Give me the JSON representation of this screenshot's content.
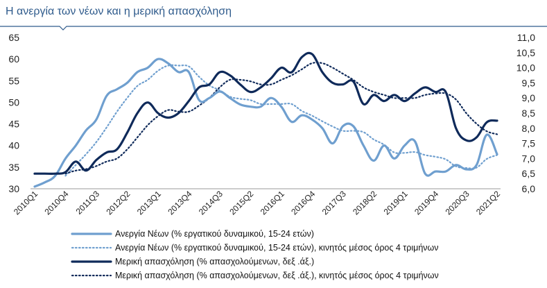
{
  "colors": {
    "accent": "#2f5b8c",
    "light_blue": "#6f9fcf",
    "dark_navy": "#0f2a5a",
    "rule": "#2f5b8c"
  },
  "chart_data": {
    "type": "line",
    "title": "Η ανεργία των νέων και η μερική απασχόληση",
    "x": [
      "2010Q1",
      "2010Q2",
      "2010Q3",
      "2010Q4",
      "2011Q1",
      "2011Q2",
      "2011Q3",
      "2011Q4",
      "2012Q1",
      "2012Q2",
      "2012Q3",
      "2012Q4",
      "2013Q1",
      "2013Q2",
      "2013Q3",
      "2013Q4",
      "2014Q1",
      "2014Q2",
      "2014Q3",
      "2014Q4",
      "2015Q1",
      "2015Q2",
      "2015Q3",
      "2015Q4",
      "2016Q1",
      "2016Q2",
      "2016Q3",
      "2016Q4",
      "2017Q1",
      "2017Q2",
      "2017Q3",
      "2017Q4",
      "2018Q1",
      "2018Q2",
      "2018Q3",
      "2018Q4",
      "2019Q1",
      "2019Q2",
      "2019Q3",
      "2019Q4",
      "2020Q1",
      "2020Q2",
      "2020Q3",
      "2020Q4",
      "2021Q1",
      "2021Q2"
    ],
    "xtick_labels": [
      "2010Q1",
      "2010Q4",
      "2011Q3",
      "2012Q2",
      "2013Q1",
      "2013Q4",
      "2014Q3",
      "2015Q2",
      "2016Q1",
      "2016Q4",
      "2017Q3",
      "2018Q2",
      "2019Q1",
      "2019Q4",
      "2020Q3",
      "2021Q2"
    ],
    "left_axis": {
      "ylim": [
        30,
        65
      ],
      "ticks": [
        "30",
        "35",
        "40",
        "45",
        "50",
        "55",
        "60",
        "65"
      ]
    },
    "right_axis": {
      "ylim": [
        6.0,
        11.0
      ],
      "ticks": [
        "6,0",
        "6,5",
        "7,0",
        "7,5",
        "8,0",
        "8,5",
        "9,0",
        "9,5",
        "10,0",
        "10,5",
        "11,0"
      ]
    },
    "series": [
      {
        "name": "Ανεργία Νέων (% εργατικού δυναμικού, 15-24 ετών)",
        "axis": "left",
        "style": "solid-light",
        "values": [
          30.5,
          31.5,
          33,
          37,
          40,
          43.5,
          46,
          51.5,
          53,
          54.5,
          57,
          58,
          60,
          59,
          57,
          57,
          50.5,
          51,
          52.5,
          51,
          49.5,
          49,
          49,
          51,
          49,
          45.5,
          47,
          46,
          44,
          40.5,
          44.5,
          44.5,
          40,
          36.5,
          40,
          37,
          40,
          41,
          33.5,
          34,
          34,
          35.5,
          34.5,
          35.5,
          42.5,
          38
        ]
      },
      {
        "name": "Ανεργία Νέων (% εργατικού δυναμικού, 15-24 ετών), κινητός μέσος όρος 4 τριμήνων",
        "axis": "left",
        "style": "dotted-light",
        "values": [
          null,
          null,
          null,
          33,
          35.5,
          38,
          40.8,
          44.2,
          47.8,
          51,
          53.8,
          55.2,
          57.3,
          58.5,
          58.5,
          58.3,
          55.9,
          53.9,
          52.8,
          51.3,
          50.8,
          50.5,
          49.6,
          49.6,
          49.6,
          49.6,
          48,
          46.9,
          45.6,
          44.4,
          43.4,
          43.4,
          43.1,
          41.4,
          40.2,
          38.4,
          38.3,
          38.5,
          37.8,
          37.4,
          36.8,
          35.2,
          34.8,
          34.9,
          36.9,
          37.8
        ]
      },
      {
        "name": "Μερική απασχόληση (% απασχολούμενων, δεξ .άξ.)",
        "axis": "right",
        "style": "solid-dark",
        "values": [
          6.5,
          6.5,
          6.5,
          6.55,
          6.9,
          6.6,
          6.95,
          7.2,
          7.3,
          7.85,
          8.5,
          8.85,
          8.5,
          8.35,
          8.5,
          8.9,
          9.35,
          9.45,
          9.85,
          9.75,
          9.45,
          9.2,
          9.35,
          9.65,
          10.0,
          9.85,
          10.35,
          10.45,
          9.85,
          9.5,
          9.45,
          9.55,
          8.8,
          9.1,
          8.9,
          9.1,
          8.9,
          9.15,
          9.35,
          9.2,
          9.2,
          8.0,
          7.6,
          7.7,
          8.2,
          8.25
        ]
      },
      {
        "name": "Μερική απασχόληση (% απασχολούμενων, δεξ .άξ.), κινητός μέσος όρος 4 τριμήνων",
        "axis": "right",
        "style": "dotted-dark",
        "values": [
          null,
          null,
          null,
          6.5,
          6.6,
          6.65,
          6.75,
          6.9,
          7.0,
          7.3,
          7.7,
          8.1,
          8.4,
          8.6,
          8.55,
          8.55,
          8.75,
          9.0,
          9.35,
          9.6,
          9.6,
          9.55,
          9.45,
          9.45,
          9.6,
          9.75,
          9.95,
          10.15,
          10.15,
          10.0,
          9.8,
          9.6,
          9.35,
          9.2,
          9.1,
          9.0,
          9.0,
          9.0,
          9.1,
          9.15,
          9.15,
          8.95,
          8.5,
          8.15,
          7.9,
          7.8
        ]
      }
    ]
  }
}
